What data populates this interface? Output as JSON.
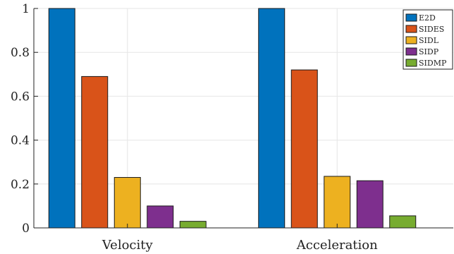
{
  "chart_data": {
    "type": "bar",
    "categories": [
      "Velocity",
      "Acceleration"
    ],
    "series": [
      {
        "name": "E2D",
        "color": "#0072BD",
        "values": [
          1.0,
          1.0
        ]
      },
      {
        "name": "SIDES",
        "color": "#D95319",
        "values": [
          0.69,
          0.72
        ]
      },
      {
        "name": "SIDL",
        "color": "#EDB120",
        "values": [
          0.23,
          0.235
        ]
      },
      {
        "name": "SIDP",
        "color": "#7E2F8E",
        "values": [
          0.1,
          0.215
        ]
      },
      {
        "name": "SIDMP",
        "color": "#77AC30",
        "values": [
          0.03,
          0.055
        ]
      }
    ],
    "ylim": [
      0,
      1
    ],
    "yticks": [
      "0",
      "0.2",
      "0.4",
      "0.6",
      "0.8",
      "1"
    ],
    "grid": true,
    "legend_position": "top-right"
  }
}
